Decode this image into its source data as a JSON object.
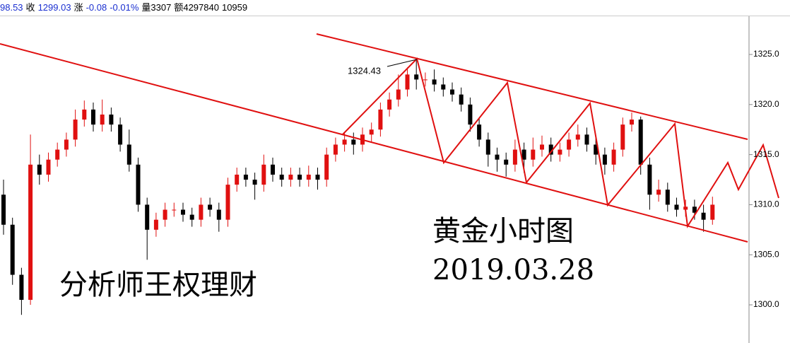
{
  "header": [
    "98.53",
    "收",
    "1299.03",
    "涨",
    "-0.08",
    "-0.01%",
    "量3307",
    "额4297840",
    "10959"
  ],
  "chart_data": {
    "type": "candlestick",
    "title": "黄金小时图",
    "subtitle": "2019.03.28",
    "author": "分析师王权理财",
    "annotation": "1324.43",
    "up_color": "#e01010",
    "down_color": "#000000",
    "ylim": [
      1296.19,
      1327.26
    ],
    "yticks": [
      {
        "value": 1300,
        "label": "1300.0"
      },
      {
        "value": 1305,
        "label": "1305.0"
      },
      {
        "value": 1310,
        "label": "1310.0"
      },
      {
        "value": 1315,
        "label": "1315.0"
      },
      {
        "value": 1320,
        "label": "1320.0"
      },
      {
        "value": 1325,
        "label": "1325.0"
      }
    ],
    "open": [
      1311,
      1308,
      1303,
      1300.5,
      1314,
      1313,
      1314.5,
      1315.5,
      1316.5,
      1318.5,
      1319.5,
      1318,
      1319,
      1318,
      1316,
      1314,
      1310,
      1307.5,
      1308.5,
      1309.5,
      1309.5,
      1309,
      1308.5,
      1310,
      1309.5,
      1308.5,
      1312,
      1313,
      1312.5,
      1312,
      1314,
      1313,
      1312.5,
      1313,
      1312.5,
      1313,
      1312.5,
      1315,
      1316,
      1316.5,
      1316,
      1317,
      1317.5,
      1319.5,
      1320.5,
      1321.5,
      1323,
      1322.5,
      1322.5,
      1322,
      1321.5,
      1321,
      1320,
      1318,
      1316.5,
      1315,
      1314.5,
      1314,
      1315.5,
      1314.5,
      1315.5,
      1316,
      1315,
      1315.5,
      1316.5,
      1317,
      1316,
      1315,
      1314,
      1315.5,
      1318,
      1318.5,
      1314,
      1311,
      1311.5,
      1310,
      1309.5,
      1309.8,
      1309.2,
      1308.5
    ],
    "close": [
      1308,
      1303,
      1300.5,
      1314,
      1313,
      1314.5,
      1315.5,
      1316.5,
      1318.5,
      1319.5,
      1318,
      1319,
      1318,
      1316,
      1314,
      1310,
      1307.5,
      1308.5,
      1309.5,
      1309.5,
      1309,
      1308.5,
      1310,
      1309.5,
      1308.5,
      1312,
      1313,
      1312.5,
      1312,
      1314,
      1313,
      1312.5,
      1313,
      1312.5,
      1313,
      1312.5,
      1315,
      1316,
      1316.5,
      1316,
      1317,
      1317.5,
      1319.5,
      1320.5,
      1321.5,
      1323,
      1322.5,
      1322.5,
      1322,
      1321.5,
      1321,
      1320,
      1318,
      1316.5,
      1315,
      1314.5,
      1314,
      1315.5,
      1314.5,
      1315.5,
      1316,
      1315,
      1315.5,
      1316.5,
      1317,
      1316,
      1315,
      1314,
      1315.5,
      1318,
      1318.5,
      1314,
      1311,
      1311.5,
      1310,
      1309.5,
      1309.8,
      1309.2,
      1308.5,
      1310
    ],
    "high": [
      1312.5,
      1308.7,
      1303.7,
      1317,
      1315,
      1315.2,
      1316.2,
      1317.2,
      1319.5,
      1320.4,
      1320.2,
      1320.5,
      1319.7,
      1318.7,
      1317.5,
      1314.7,
      1310.7,
      1309.2,
      1310.2,
      1310.2,
      1310.2,
      1309.7,
      1310.7,
      1310.7,
      1310.2,
      1312.7,
      1313.7,
      1313.7,
      1313.2,
      1315,
      1314.7,
      1313.7,
      1313.7,
      1313.7,
      1313.9,
      1313.7,
      1315.7,
      1316.7,
      1317.2,
      1317.2,
      1317.7,
      1318.2,
      1320.2,
      1321.2,
      1323,
      1323.7,
      1324.43,
      1323.2,
      1323.5,
      1322.7,
      1322.2,
      1321.7,
      1320.7,
      1318.7,
      1317.2,
      1315.7,
      1315.2,
      1316.5,
      1316.2,
      1316.7,
      1316.9,
      1316.7,
      1316.2,
      1317.2,
      1318,
      1317.7,
      1316.7,
      1315.7,
      1316.2,
      1318.7,
      1319.2,
      1318.8,
      1314.7,
      1312.5,
      1312.2,
      1310.7,
      1310.5,
      1310.5,
      1310,
      1310.8
    ],
    "low": [
      1307,
      1302,
      1299,
      1300,
      1312,
      1312.3,
      1313.8,
      1314.8,
      1315.8,
      1317.8,
      1317.3,
      1317.3,
      1317.3,
      1315.3,
      1313.3,
      1309.3,
      1304.5,
      1306.8,
      1307.8,
      1308.8,
      1308.3,
      1307.8,
      1307.8,
      1308.8,
      1307.3,
      1307.8,
      1311.3,
      1311.8,
      1310.5,
      1311.3,
      1312.3,
      1311.8,
      1311.8,
      1311.8,
      1311.8,
      1311.5,
      1311.8,
      1314.3,
      1315.3,
      1315,
      1315.3,
      1316.3,
      1316.8,
      1318.8,
      1319.8,
      1320.8,
      1321.5,
      1321.8,
      1321.3,
      1320.8,
      1320.3,
      1319.3,
      1317.3,
      1315.8,
      1313.8,
      1313.3,
      1312.8,
      1313.3,
      1313.2,
      1313.8,
      1314.8,
      1314.3,
      1314.3,
      1314.8,
      1315.8,
      1315.3,
      1314,
      1313,
      1313.3,
      1314.8,
      1317.3,
      1313,
      1309.5,
      1310.3,
      1309.3,
      1308.8,
      1308.8,
      1308.5,
      1307.3,
      1308
    ]
  }
}
